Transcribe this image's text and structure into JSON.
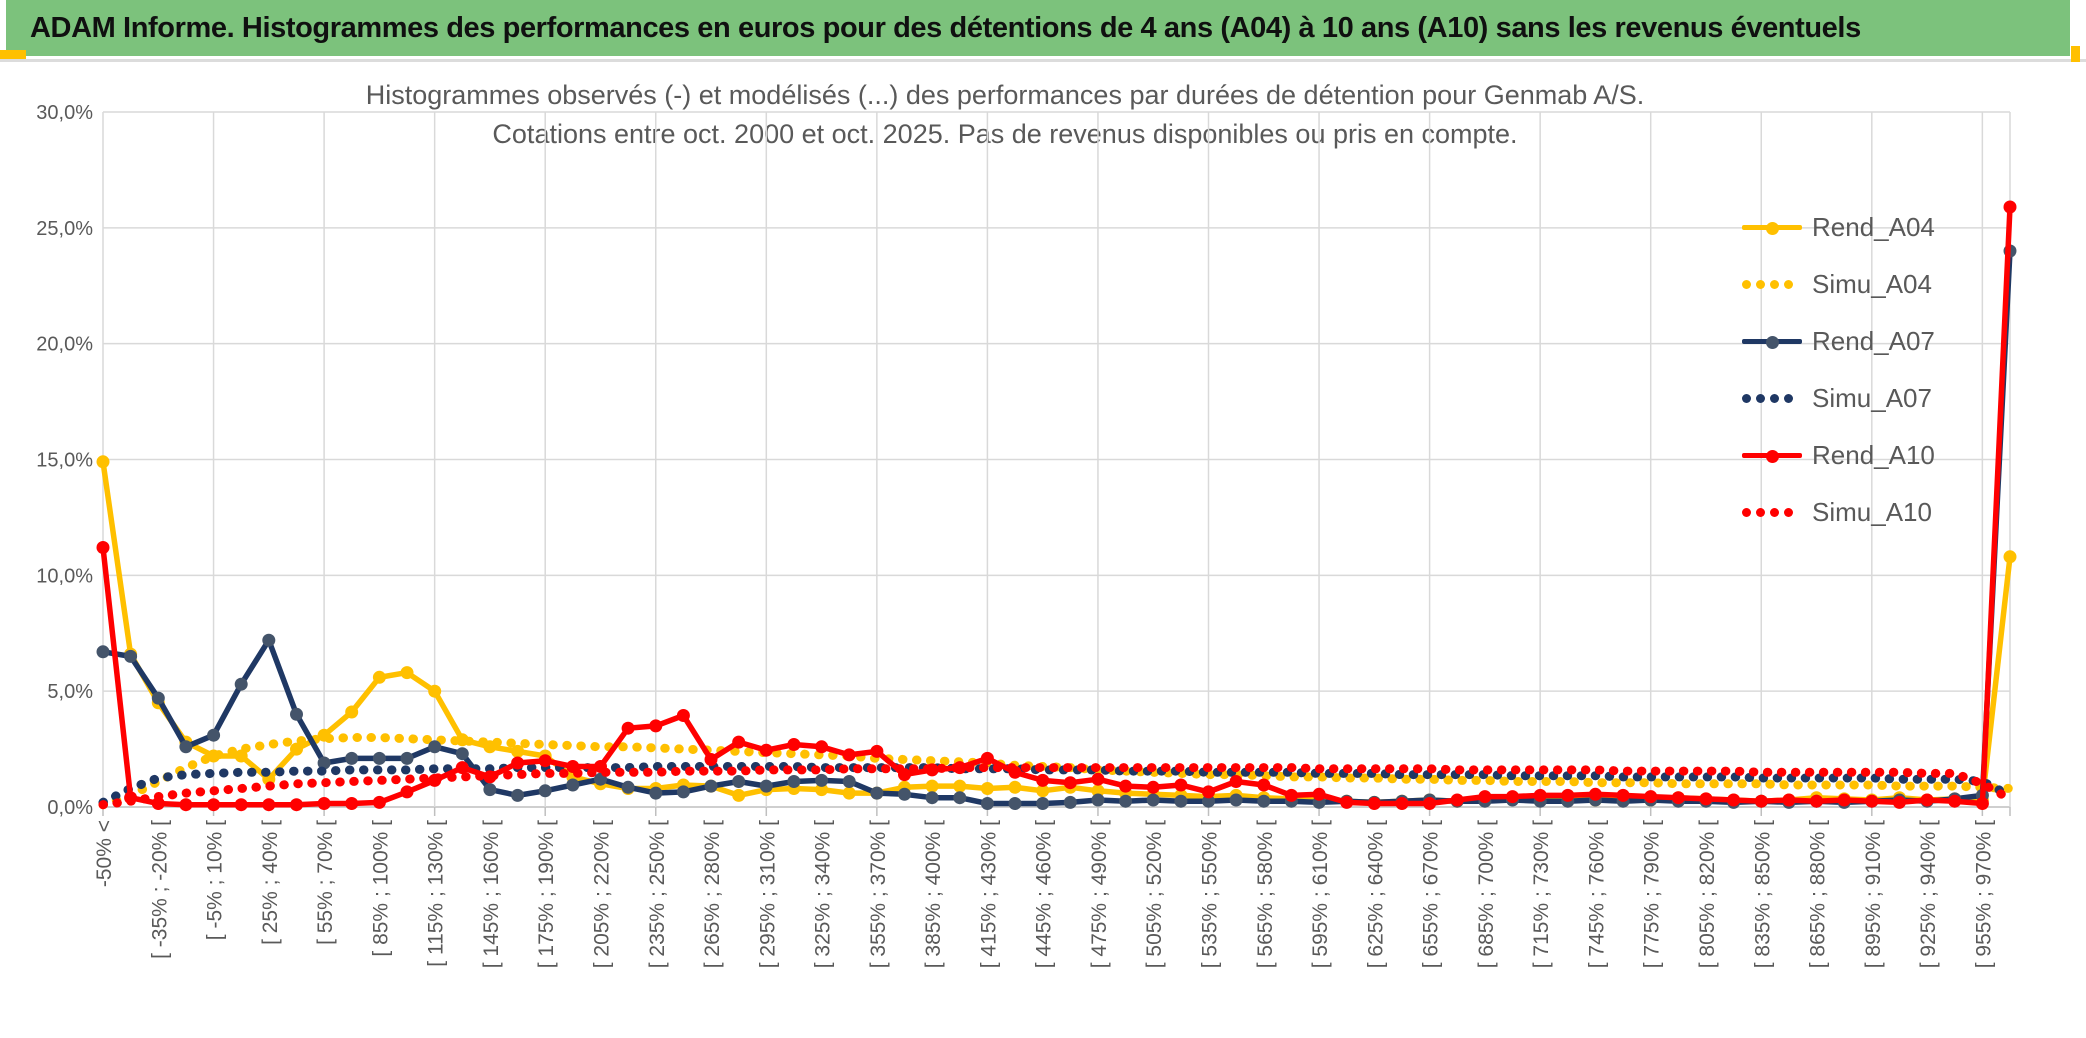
{
  "header": {
    "title": "ADAM Informe. Histogrammes des performances en euros pour des détentions de 4 ans (A04) à 10 ans (A10) sans les revenus éventuels"
  },
  "colors": {
    "banner_green": "#7CC27C",
    "gold_accent": "#FFC000",
    "axis_text_gray": "#595959",
    "gridline_gray": "#D9D9D9",
    "axis_line_gray": "#BFBFBF",
    "series_gold": "#FFC000",
    "series_navy": "#1F3864",
    "series_navy_marker": "#44546A",
    "series_red": "#FF0000"
  },
  "chart_data": {
    "type": "line",
    "title_line1": "Histogrammes observés (-) et modélisés (...) des performances par durées de détention pour Genmab A/S.",
    "title_line2": "Cotations entre oct. 2000 et oct. 2025. Pas de revenus disponibles ou pris en compte.",
    "ylabel": "",
    "xlabel": "",
    "ylim": [
      0,
      30
    ],
    "ytick_step": 5,
    "ytick_labels": [
      "0,0%",
      "5,0%",
      "10,0%",
      "15,0%",
      "20,0%",
      "25,0%",
      "30,0%"
    ],
    "grid": true,
    "legend_position": "right-top",
    "n_points": 70,
    "x_labels_every_n_points": 2,
    "categories": [
      "-50% <",
      "[ -35% ; -20% [",
      "[ -5% ; 10% [",
      "[ 25% ; 40% [",
      "[ 55% ; 70% [",
      "[ 85% ; 100% [",
      "[ 115% ; 130% [",
      "[ 145% ; 160% [",
      "[ 175% ; 190% [",
      "[ 205% ; 220% [",
      "[ 235% ; 250% [",
      "[ 265% ; 280% [",
      "[ 295% ; 310% [",
      "[ 325% ; 340% [",
      "[ 355% ; 370% [",
      "[ 385% ; 400% [",
      "[ 415% ; 430% [",
      "[ 445% ; 460% [",
      "[ 475% ; 490% [",
      "[ 505% ; 520% [",
      "[ 535% ; 550% [",
      "[ 565% ; 580% [",
      "[ 595% ; 610% [",
      "[ 625% ; 640% [",
      "[ 655% ; 670% [",
      "[ 685% ; 700% [",
      "[ 715% ; 730% [",
      "[ 745% ; 760% [",
      "[ 775% ; 790% [",
      "[ 805% ; 820% [",
      "[ 835% ; 850% [",
      "[ 865% ; 880% [",
      "[ 895% ; 910% [",
      "[ 925% ; 940% [",
      "[ 955% ; 970% ["
    ],
    "values_unit": "percent",
    "series": [
      {
        "name": "Rend_A04",
        "color": "#FFC000",
        "marker_color": "#FFC000",
        "style": "solid",
        "values": [
          14.9,
          6.6,
          4.5,
          2.8,
          2.2,
          2.2,
          1.2,
          2.5,
          3.1,
          4.1,
          5.6,
          5.8,
          5.0,
          2.9,
          2.6,
          2.4,
          2.2,
          1.3,
          1.0,
          0.8,
          0.8,
          0.95,
          0.9,
          0.5,
          0.75,
          0.8,
          0.75,
          0.6,
          0.6,
          0.85,
          0.9,
          0.9,
          0.8,
          0.85,
          0.7,
          0.85,
          0.7,
          0.6,
          0.55,
          0.5,
          0.45,
          0.5,
          0.4,
          0.35,
          0.3,
          0.25,
          0.2,
          0.25,
          0.3,
          0.25,
          0.3,
          0.35,
          0.3,
          0.35,
          0.3,
          0.35,
          0.3,
          0.4,
          0.35,
          0.3,
          0.25,
          0.3,
          0.4,
          0.35,
          0.3,
          0.4,
          0.3,
          0.35,
          0.3,
          10.8
        ]
      },
      {
        "name": "Simu_A04",
        "color": "#FFC000",
        "marker_color": "#FFC000",
        "style": "dotted",
        "values": [
          0.1,
          0.5,
          1.1,
          1.7,
          2.2,
          2.5,
          2.7,
          2.85,
          2.95,
          3.0,
          3.0,
          2.95,
          2.9,
          2.85,
          2.8,
          2.75,
          2.7,
          2.65,
          2.6,
          2.6,
          2.55,
          2.5,
          2.45,
          2.4,
          2.35,
          2.3,
          2.25,
          2.2,
          2.1,
          2.05,
          2.0,
          1.95,
          1.9,
          1.8,
          1.75,
          1.7,
          1.6,
          1.55,
          1.5,
          1.45,
          1.4,
          1.4,
          1.35,
          1.3,
          1.3,
          1.25,
          1.25,
          1.2,
          1.2,
          1.15,
          1.15,
          1.1,
          1.1,
          1.1,
          1.05,
          1.05,
          1.05,
          1.0,
          1.0,
          1.0,
          1.0,
          0.95,
          0.95,
          0.95,
          0.95,
          0.9,
          0.9,
          0.9,
          0.85,
          0.8
        ]
      },
      {
        "name": "Rend_A07",
        "color": "#1F3864",
        "marker_color": "#44546A",
        "style": "solid",
        "values": [
          6.7,
          6.5,
          4.7,
          2.6,
          3.1,
          5.3,
          7.2,
          4.0,
          1.9,
          2.1,
          2.1,
          2.1,
          2.6,
          2.3,
          0.75,
          0.5,
          0.7,
          0.95,
          1.2,
          0.85,
          0.6,
          0.65,
          0.9,
          1.1,
          0.9,
          1.1,
          1.15,
          1.1,
          0.6,
          0.55,
          0.4,
          0.4,
          0.15,
          0.15,
          0.15,
          0.2,
          0.3,
          0.25,
          0.3,
          0.25,
          0.25,
          0.3,
          0.25,
          0.25,
          0.2,
          0.25,
          0.2,
          0.25,
          0.3,
          0.25,
          0.25,
          0.3,
          0.25,
          0.25,
          0.3,
          0.25,
          0.3,
          0.25,
          0.25,
          0.2,
          0.25,
          0.2,
          0.25,
          0.2,
          0.25,
          0.3,
          0.25,
          0.35,
          0.5,
          24.0
        ]
      },
      {
        "name": "Simu_A07",
        "color": "#1F3864",
        "marker_color": "#1F3864",
        "style": "dotted",
        "values": [
          0.2,
          0.8,
          1.25,
          1.4,
          1.45,
          1.5,
          1.5,
          1.55,
          1.55,
          1.6,
          1.6,
          1.6,
          1.65,
          1.65,
          1.65,
          1.7,
          1.7,
          1.7,
          1.7,
          1.7,
          1.75,
          1.75,
          1.75,
          1.75,
          1.75,
          1.75,
          1.7,
          1.7,
          1.7,
          1.7,
          1.7,
          1.65,
          1.65,
          1.65,
          1.6,
          1.6,
          1.6,
          1.55,
          1.55,
          1.55,
          1.5,
          1.5,
          1.5,
          1.5,
          1.45,
          1.45,
          1.45,
          1.4,
          1.4,
          1.4,
          1.4,
          1.35,
          1.35,
          1.35,
          1.35,
          1.3,
          1.3,
          1.3,
          1.3,
          1.3,
          1.25,
          1.25,
          1.25,
          1.25,
          1.25,
          1.2,
          1.2,
          1.2,
          1.1,
          0.5
        ]
      },
      {
        "name": "Rend_A10",
        "color": "#FF0000",
        "marker_color": "#FF0000",
        "style": "solid",
        "values": [
          11.2,
          0.4,
          0.15,
          0.1,
          0.1,
          0.1,
          0.1,
          0.1,
          0.15,
          0.15,
          0.2,
          0.65,
          1.15,
          1.7,
          1.3,
          1.9,
          2.0,
          1.75,
          1.75,
          3.4,
          3.5,
          3.95,
          2.05,
          2.8,
          2.45,
          2.7,
          2.6,
          2.25,
          2.4,
          1.4,
          1.6,
          1.7,
          2.1,
          1.5,
          1.15,
          1.05,
          1.2,
          0.9,
          0.85,
          0.95,
          0.65,
          1.1,
          0.95,
          0.5,
          0.55,
          0.2,
          0.15,
          0.15,
          0.15,
          0.3,
          0.45,
          0.45,
          0.5,
          0.5,
          0.55,
          0.5,
          0.45,
          0.4,
          0.35,
          0.3,
          0.25,
          0.3,
          0.25,
          0.3,
          0.25,
          0.2,
          0.3,
          0.25,
          0.15,
          25.9
        ]
      },
      {
        "name": "Simu_A10",
        "color": "#FF0000",
        "marker_color": "#FF0000",
        "style": "dotted",
        "values": [
          0.1,
          0.25,
          0.45,
          0.6,
          0.7,
          0.8,
          0.9,
          1.0,
          1.05,
          1.1,
          1.15,
          1.2,
          1.25,
          1.3,
          1.35,
          1.4,
          1.45,
          1.45,
          1.5,
          1.5,
          1.5,
          1.55,
          1.55,
          1.55,
          1.6,
          1.6,
          1.6,
          1.65,
          1.65,
          1.65,
          1.65,
          1.7,
          1.7,
          1.7,
          1.7,
          1.7,
          1.7,
          1.7,
          1.7,
          1.7,
          1.7,
          1.7,
          1.7,
          1.7,
          1.65,
          1.65,
          1.65,
          1.65,
          1.65,
          1.6,
          1.6,
          1.6,
          1.6,
          1.6,
          1.6,
          1.55,
          1.55,
          1.55,
          1.55,
          1.55,
          1.5,
          1.5,
          1.5,
          1.5,
          1.5,
          1.5,
          1.45,
          1.45,
          1.0,
          0.35
        ]
      }
    ]
  }
}
